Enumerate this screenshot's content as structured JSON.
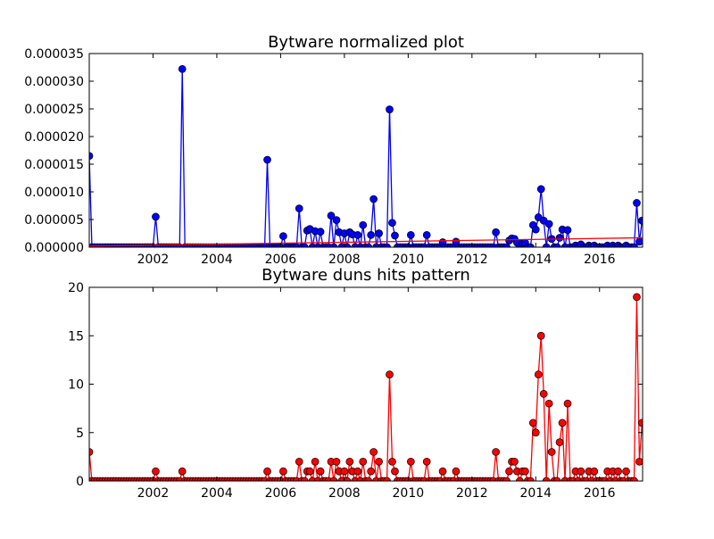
{
  "chart_data": [
    {
      "type": "line",
      "title": "Bytware normalized plot",
      "xlabel": "",
      "ylabel": "",
      "xlim": [
        2000.0,
        2017.35
      ],
      "ylim": [
        0,
        3.5e-05
      ],
      "xticks": [
        2002,
        2004,
        2006,
        2008,
        2010,
        2012,
        2014,
        2016
      ],
      "xtick_labels": [
        "2002",
        "2004",
        "2006",
        "2008",
        "2010",
        "2012",
        "2014",
        "2016"
      ],
      "yticks": [
        0,
        5e-06,
        1e-05,
        1.5e-05,
        2e-05,
        2.5e-05,
        3e-05,
        3.5e-05
      ],
      "ytick_labels": [
        "0.000000",
        "0.000005",
        "0.000010",
        "0.000015",
        "0.000020",
        "0.000025",
        "0.000030",
        "0.000035"
      ],
      "grid": false,
      "series": [
        {
          "color": "#0000ff",
          "marker": "circle",
          "x": [
            2000.0,
            2002.08,
            2002.92,
            2005.58,
            2006.08,
            2006.58,
            2006.83,
            2006.92,
            2007.08,
            2007.25,
            2007.58,
            2007.75,
            2007.83,
            2008.0,
            2008.17,
            2008.25,
            2008.42,
            2008.58,
            2008.83,
            2008.92,
            2009.08,
            2009.42,
            2009.5,
            2009.58,
            2010.08,
            2010.58,
            2011.08,
            2011.5,
            2012.75,
            2013.17,
            2013.25,
            2013.33,
            2013.42,
            2013.58,
            2013.67,
            2013.92,
            2014.0,
            2014.08,
            2014.17,
            2014.25,
            2014.42,
            2014.5,
            2014.75,
            2014.83,
            2015.0,
            2015.25,
            2015.42,
            2015.67,
            2015.83,
            2016.25,
            2016.42,
            2016.58,
            2016.83,
            2017.17,
            2017.25,
            2017.33
          ],
          "y": [
            1.65e-05,
            5.5e-06,
            3.22e-05,
            1.58e-05,
            2e-06,
            7e-06,
            3e-06,
            3.3e-06,
            2.9e-06,
            2.8e-06,
            5.7e-06,
            4.9e-06,
            2.7e-06,
            2.5e-06,
            2.7e-06,
            2.3e-06,
            2.2e-06,
            4e-06,
            2.2e-06,
            8.7e-06,
            2.5e-06,
            2.49e-05,
            4.4e-06,
            2.1e-06,
            2.2e-06,
            2.2e-06,
            9e-07,
            1e-06,
            2.7e-06,
            1.2e-06,
            1.6e-06,
            1.5e-06,
            8e-07,
            7e-07,
            8e-07,
            4e-06,
            3.2e-06,
            5.4e-06,
            1.05e-05,
            4.8e-06,
            4.2e-06,
            1.5e-06,
            1.7e-06,
            3.2e-06,
            3.1e-06,
            3e-07,
            5e-07,
            3e-07,
            3e-07,
            3e-07,
            3e-07,
            3e-07,
            3e-07,
            8e-06,
            1e-06,
            4.8e-06
          ]
        },
        {
          "color": "#ff0000",
          "marker": "none",
          "x": [
            2000.0,
            2017.35
          ],
          "y": [
            2e-07,
            1.7e-06
          ]
        }
      ]
    },
    {
      "type": "line",
      "title": "Bytware duns hits pattern",
      "xlabel": "",
      "ylabel": "",
      "xlim": [
        2000.0,
        2017.35
      ],
      "ylim": [
        0,
        20
      ],
      "xticks": [
        2002,
        2004,
        2006,
        2008,
        2010,
        2012,
        2014,
        2016
      ],
      "xtick_labels": [
        "2002",
        "2004",
        "2006",
        "2008",
        "2010",
        "2012",
        "2014",
        "2016"
      ],
      "yticks": [
        0,
        5,
        10,
        15,
        20
      ],
      "ytick_labels": [
        "0",
        "5",
        "10",
        "15",
        "20"
      ],
      "grid": false,
      "series": [
        {
          "color": "#ff0000",
          "marker": "circle",
          "x": [
            2000.0,
            2002.08,
            2002.92,
            2005.58,
            2006.08,
            2006.58,
            2006.83,
            2006.92,
            2007.08,
            2007.25,
            2007.58,
            2007.75,
            2007.83,
            2008.0,
            2008.17,
            2008.25,
            2008.42,
            2008.58,
            2008.83,
            2008.92,
            2009.08,
            2009.42,
            2009.5,
            2009.58,
            2010.08,
            2010.58,
            2011.08,
            2011.5,
            2012.75,
            2013.17,
            2013.25,
            2013.33,
            2013.42,
            2013.58,
            2013.67,
            2013.92,
            2014.0,
            2014.08,
            2014.17,
            2014.25,
            2014.42,
            2014.5,
            2014.75,
            2014.83,
            2015.0,
            2015.25,
            2015.42,
            2015.67,
            2015.83,
            2016.25,
            2016.42,
            2016.58,
            2016.83,
            2017.17,
            2017.25,
            2017.33
          ],
          "y": [
            3,
            1,
            1,
            1,
            1,
            2,
            1,
            1,
            2,
            1,
            2,
            2,
            1,
            1,
            2,
            1,
            1,
            2,
            1,
            3,
            2,
            11,
            2,
            1,
            2,
            2,
            1,
            1,
            3,
            1,
            2,
            2,
            1,
            1,
            1,
            6,
            5,
            11,
            15,
            9,
            8,
            3,
            4,
            6,
            8,
            1,
            1,
            1,
            1,
            1,
            1,
            1,
            1,
            19,
            2,
            6
          ]
        }
      ]
    }
  ]
}
